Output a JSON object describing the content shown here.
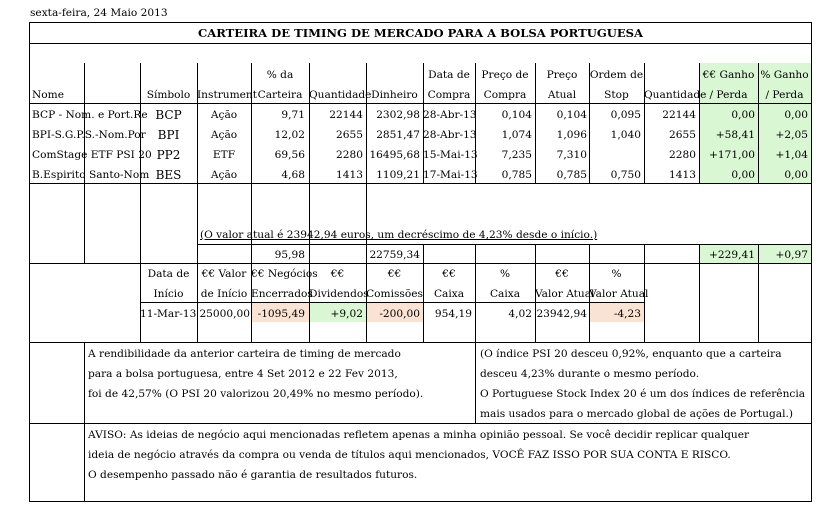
{
  "date_label": "sexta-feira, 24 Maio 2013",
  "title": "CARTEIRA DE TIMING DE MERCADO PARA A BOLSA PORTUGUESA",
  "headers": {
    "nome": "Nome",
    "simbolo": "Símbolo",
    "instrument": "Instrument",
    "carteira_1": "% da",
    "carteira_2": "Carteira",
    "quantidade": "Quantidade",
    "dinheiro": "Dinheiro",
    "data_1": "Data de",
    "data_2": "Compra",
    "preco_compra_1": "Preço de",
    "preco_compra_2": "Compra",
    "preco_atual_1": "Preço",
    "preco_atual_2": "Atual",
    "stop_1": "Ordem de",
    "stop_2": "Stop",
    "quantidade2": "Quantidade",
    "ganho_1": "€€ Ganho",
    "ganho_2": "/ Perda",
    "pganho_1": "% Ganho",
    "pganho_2": "/ Perda"
  },
  "rows": [
    {
      "nome": "BCP - Nom. e Port.Re",
      "simbolo": "BCP",
      "instrument": "Ação",
      "carteira": "9,71",
      "quantidade": "22144",
      "dinheiro": "2302,98",
      "data": "28-Abr-13",
      "preco_compra": "0,104",
      "preco_atual": "0,104",
      "stop": "0,095",
      "quantidade2": "22144",
      "ganho": "0,00",
      "pganho": "0,00"
    },
    {
      "nome": "BPI-S.G.P.S.-Nom.Por",
      "simbolo": "BPI",
      "instrument": "Ação",
      "carteira": "12,02",
      "quantidade": "2655",
      "dinheiro": "2851,47",
      "data": "28-Abr-13",
      "preco_compra": "1,074",
      "preco_atual": "1,096",
      "stop": "1,040",
      "quantidade2": "2655",
      "ganho": "+58,41",
      "pganho": "+2,05"
    },
    {
      "nome": "ComStage ETF PSI 20",
      "simbolo": "PP2",
      "instrument": "ETF",
      "carteira": "69,56",
      "quantidade": "2280",
      "dinheiro": "16495,68",
      "data": "15-Mai-13",
      "preco_compra": "7,235",
      "preco_atual": "7,310",
      "stop": "",
      "quantidade2": "2280",
      "ganho": "+171,00",
      "pganho": "+1,04"
    },
    {
      "nome": "B.Espirito Santo-Nom",
      "simbolo": "BES",
      "instrument": "Ação",
      "carteira": "4,68",
      "quantidade": "1413",
      "dinheiro": "1109,21",
      "data": "17-Mai-13",
      "preco_compra": "0,785",
      "preco_atual": "0,785",
      "stop": "0,750",
      "quantidade2": "1413",
      "ganho": "0,00",
      "pganho": "0,00"
    }
  ],
  "valor_atual_note": "(O valor atual é 23942,94 euros, um decréscimo de 4,23% desde o início.)",
  "totals": {
    "carteira": "95,98",
    "dinheiro": "22759,34",
    "ganho": "+229,41",
    "pganho": "+0,97"
  },
  "summary_headers": {
    "data_1": "Data de",
    "data_2": "Início",
    "valor_1": "€€ Valor",
    "valor_2": "de Início",
    "neg_1": "€€ Negócios",
    "neg_2": "Encerrados",
    "div_1": "€€",
    "div_2": "Dividendos",
    "com_1": "€€",
    "com_2": "Comissões",
    "caixa_1": "€€",
    "caixa_2": "Caixa",
    "pcaixa_1": "%",
    "pcaixa_2": "Caixa",
    "va_1": "€€",
    "va_2": "Valor Atual",
    "pva_1": "%",
    "pva_2": "Valor Atual"
  },
  "summary_values": {
    "data": "11-Mar-13",
    "valor": "25000,00",
    "neg": "-1095,49",
    "div": "+9,02",
    "com": "-200,00",
    "caixa": "954,19",
    "pcaixa": "4,02",
    "va": "23942,94",
    "pva": "-4,23"
  },
  "para_left": [
    "A rendibilidade da anterior carteira de timing de mercado",
    "para a bolsa portuguesa, entre 4 Set 2012 e 22 Fev 2013,",
    "foi de 42,57% (O PSI 20 valorizou 20,49% no mesmo período)."
  ],
  "para_right": [
    "(O índice PSI 20 desceu 0,92%, enquanto que a carteira",
    "desceu 4,23% durante o mesmo período.",
    "O Portuguese Stock Index 20 é um dos índices de referência",
    "mais usados para o mercado global de ações de Portugal.)"
  ],
  "disclaimer": [
    "AVISO: As ideias de negócio aqui mencionadas refletem apenas a minha opinião pessoal. Se você decidir replicar qualquer",
    "ideia de negócio através da compra ou venda de títulos aqui mencionados, VOCÊ FAZ ISSO POR SUA CONTA E RISCO.",
    "O desempenho passado não é garantia de resultados futuros."
  ],
  "colors": {
    "gain": "#d9f7d3",
    "loss": "#fbe3d4"
  }
}
